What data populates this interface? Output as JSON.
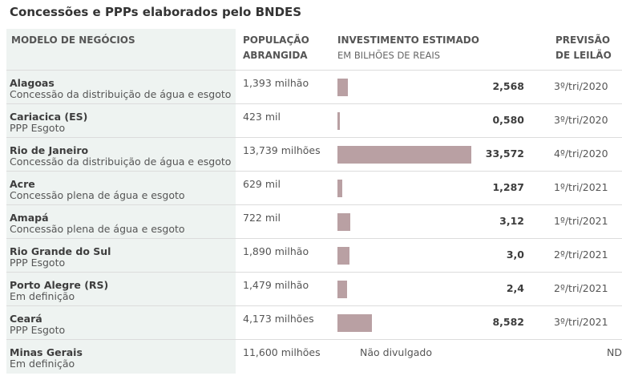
{
  "title": "Concessões e PPPs elaborados pelo BNDES",
  "headers": {
    "modelo": "MODELO DE NEGÓCIOS",
    "populacao_1": "POPULAÇÃO",
    "populacao_2": "ABRANGIDA",
    "investimento": "INVESTIMENTO ESTIMADO",
    "investimento_sub": "EM BILHÕES DE REAIS",
    "previsao_1": "PREVISÃO",
    "previsao_2": "DE LEILÃO"
  },
  "colors": {
    "bar": "#b9a0a3",
    "first_column_background": "#eef3f1"
  },
  "chart_data": {
    "type": "bar",
    "orientation": "horizontal",
    "title": "Concessões e PPPs elaborados pelo BNDES",
    "categories": [
      "Alagoas",
      "Cariacica (ES)",
      "Rio de Janeiro",
      "Acre",
      "Amapá",
      "Rio Grande do Sul",
      "Porto Alegre (RS)",
      "Ceará",
      "Minas Gerais"
    ],
    "values": [
      2.568,
      0.58,
      33.572,
      1.287,
      3.12,
      3.0,
      2.4,
      8.582,
      null
    ],
    "xlim": [
      0,
      33.572
    ]
  },
  "rows": [
    {
      "name": "Alagoas",
      "desc": "Concessão da distribuição de água e esgoto",
      "pop": "1,393 milhão",
      "value_label": "2,568",
      "leilao": "3º/tri/2020"
    },
    {
      "name": "Cariacica (ES)",
      "desc": "PPP Esgoto",
      "pop": "423 mil",
      "value_label": "0,580",
      "leilao": "3º/tri/2020"
    },
    {
      "name": "Rio de Janeiro",
      "desc": "Concessão da distribuição de água e esgoto",
      "pop": "13,739 milhões",
      "value_label": "33,572",
      "leilao": "4º/tri/2020"
    },
    {
      "name": "Acre",
      "desc": "Concessão plena de água e esgoto",
      "pop": "629 mil",
      "value_label": "1,287",
      "leilao": "1º/tri/2021"
    },
    {
      "name": "Amapá",
      "desc": "Concessão plena de água e esgoto",
      "pop": "722 mil",
      "value_label": "3,12",
      "leilao": "1º/tri/2021"
    },
    {
      "name": "Rio Grande do Sul",
      "desc": "PPP Esgoto",
      "pop": "1,890 milhão",
      "value_label": "3,0",
      "leilao": "2º/tri/2021"
    },
    {
      "name": "Porto Alegre (RS)",
      "desc": "Em definição",
      "pop": "1,479 milhão",
      "value_label": "2,4",
      "leilao": "2º/tri/2021"
    },
    {
      "name": "Ceará",
      "desc": "PPP Esgoto",
      "pop": "4,173 milhões",
      "value_label": "8,582",
      "leilao": "3º/tri/2021"
    },
    {
      "name": "Minas Gerais",
      "desc": "Em definição",
      "pop": "11,600 milhões",
      "value_label": "Não divulgado",
      "leilao": "ND"
    }
  ]
}
